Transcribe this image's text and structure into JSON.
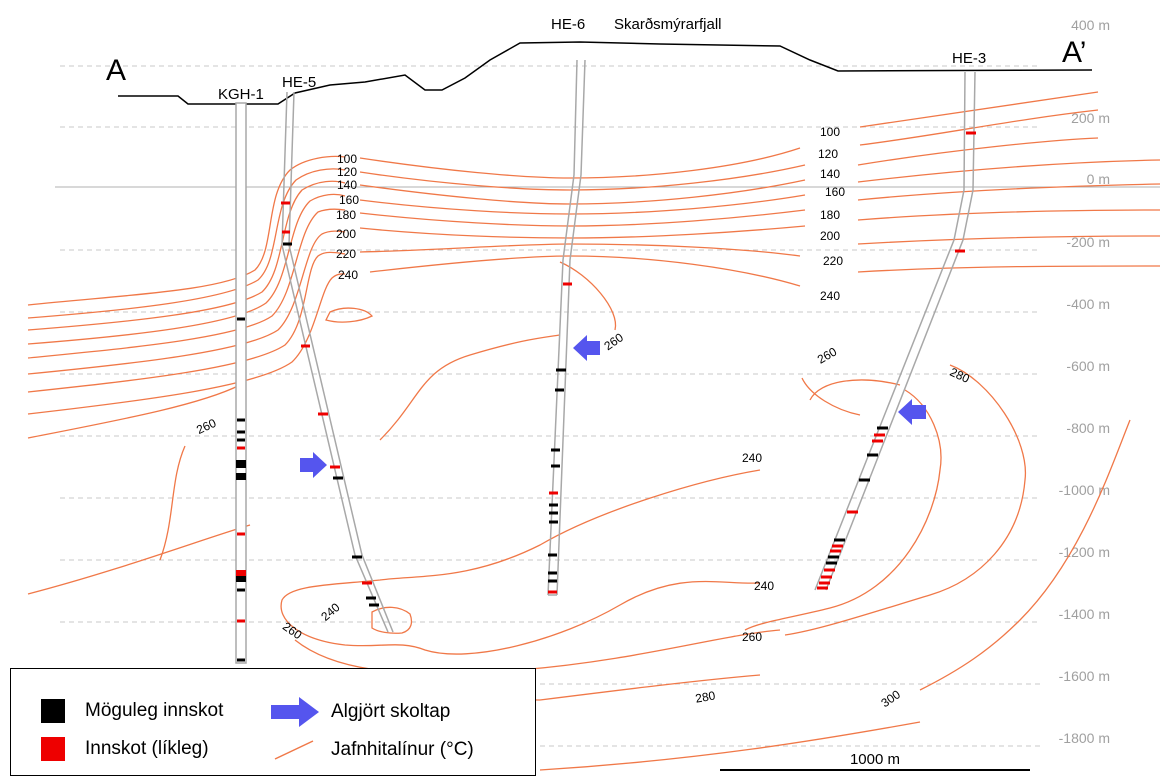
{
  "section": {
    "start_label": "A",
    "end_label": "A’",
    "mountain_label": "Skarðsmýrarfjall"
  },
  "wells": [
    {
      "name": "KGH-1"
    },
    {
      "name": "HE-5"
    },
    {
      "name": "HE-6"
    },
    {
      "name": "HE-3"
    }
  ],
  "depth_axis": {
    "ticks": [
      "400 m",
      "200 m",
      "0 m",
      "-200 m",
      "-400 m",
      "-600 m",
      "-800 m",
      "-1000 m",
      "-1200 m",
      "-1400 m",
      "-1600 m",
      "-1800 m"
    ]
  },
  "isotherm_labels": {
    "left_block": [
      "100",
      "120",
      "140",
      "160",
      "180",
      "200",
      "220",
      "240"
    ],
    "right_block": [
      "100",
      "120",
      "140",
      "160",
      "180",
      "200",
      "220",
      "240"
    ],
    "deep": [
      "260",
      "260",
      "240",
      "240",
      "260",
      "260",
      "240",
      "260",
      "280",
      "280",
      "300"
    ]
  },
  "legend": {
    "possible_feedzone": "Möguleg innskot",
    "likely_feedzone": "Innskot (líkleg)",
    "total_loss": "Algjört skoltap",
    "isotherms": "Jafnhitalínur (°C)"
  },
  "scale_bar": {
    "label": "1000 m"
  },
  "colors": {
    "isotherm": "#f07848",
    "arrow": "#5555ee",
    "possible": "#000000",
    "likely": "#ee0000",
    "grid": "#c8c8c8",
    "axis_text": "#a0a0a0"
  }
}
